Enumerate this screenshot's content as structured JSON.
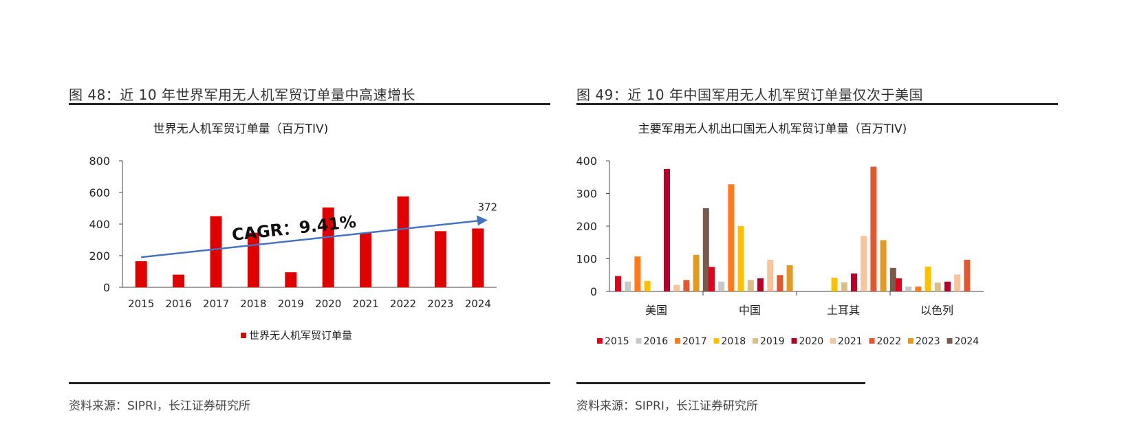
{
  "left": {
    "figure_title": "图 48：近 10 年世界军用无人机军贸订单量中高速增长",
    "source": "资料来源：SIPRI，长江证券研究所"
  },
  "right": {
    "figure_title": "图 49：近 10 年中国军用无人机军贸订单量仅次于美国",
    "source": "资料来源：SIPRI，长江证券研究所"
  },
  "colors": {
    "left_bar": "#e00000",
    "trend_arrow": "#4472c4",
    "axis": "#444444"
  },
  "chart_data": [
    {
      "type": "bar",
      "title": "世界无人机军贸订单量（百万TIV)",
      "categories": [
        "2015",
        "2016",
        "2017",
        "2018",
        "2019",
        "2020",
        "2021",
        "2022",
        "2023",
        "2024"
      ],
      "series": [
        {
          "name": "世界无人机军贸订单量",
          "values": [
            165,
            80,
            450,
            345,
            95,
            505,
            345,
            575,
            355,
            372
          ]
        }
      ],
      "yticks": [
        "0",
        "200",
        "400",
        "600",
        "800"
      ],
      "ylim": [
        0,
        800
      ],
      "annotation": "CAGR：9.41%",
      "end_label": "372",
      "trend": {
        "start": 190,
        "end": 425
      },
      "grid": false,
      "legend": "bottom"
    },
    {
      "type": "bar",
      "title": "主要军用无人机出口国无人机军贸订单量（百万TIV)",
      "categories": [
        "美国",
        "中国",
        "土耳其",
        "以色列"
      ],
      "series": [
        {
          "name": "2015",
          "color": "#e3001b",
          "values": [
            47,
            75,
            0,
            40
          ]
        },
        {
          "name": "2016",
          "color": "#c8c8c8",
          "values": [
            30,
            30,
            0,
            15
          ]
        },
        {
          "name": "2017",
          "color": "#ff7a1a",
          "values": [
            107,
            328,
            0,
            15
          ]
        },
        {
          "name": "2018",
          "color": "#ffc000",
          "values": [
            32,
            200,
            42,
            76
          ]
        },
        {
          "name": "2019",
          "color": "#d9c08a",
          "values": [
            0,
            35,
            28,
            27
          ]
        },
        {
          "name": "2020",
          "color": "#b5002a",
          "values": [
            375,
            40,
            55,
            30
          ]
        },
        {
          "name": "2021",
          "color": "#f8c49c",
          "values": [
            20,
            97,
            170,
            52
          ]
        },
        {
          "name": "2022",
          "color": "#e2582e",
          "values": [
            35,
            50,
            382,
            97
          ]
        },
        {
          "name": "2023",
          "color": "#e39a20",
          "values": [
            112,
            80,
            157,
            0
          ]
        },
        {
          "name": "2024",
          "color": "#7a5a4c",
          "values": [
            255,
            0,
            72,
            0
          ]
        }
      ],
      "yticks": [
        "0",
        "100",
        "200",
        "300",
        "400"
      ],
      "ylim": [
        0,
        400
      ],
      "grid": false,
      "legend": "bottom"
    }
  ]
}
